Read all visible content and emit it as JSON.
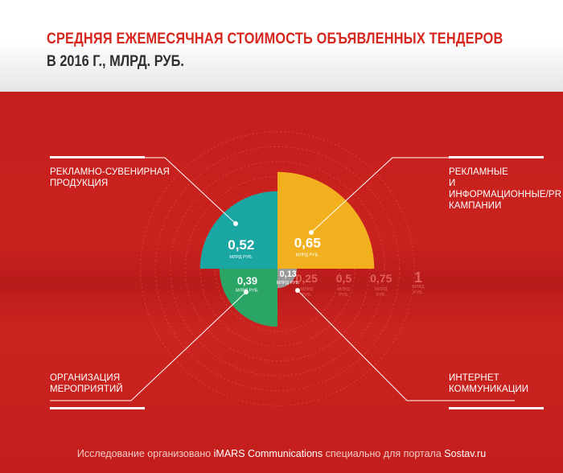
{
  "title": "СРЕДНЯЯ ЕЖЕМЕСЯЧНАЯ СТОИМОСТЬ ОБЪЯВЛЕННЫХ ТЕНДЕРОВ",
  "subtitle": "В 2016 Г., МЛРД. РУБ.",
  "footer": {
    "text_before": "Исследование организовано ",
    "org": "iMARS Communications",
    "text_middle": " специально для портала ",
    "portal": "Sostav.ru"
  },
  "colors": {
    "background": "#c8211f",
    "teal": "#1aa6a3",
    "yellow": "#f2b01e",
    "green": "#2aa566",
    "gray": "#9a9a9a",
    "title_red": "#d7261e"
  },
  "chart_data": {
    "type": "polar-area",
    "unit": "МЛРД РУБ.",
    "scale_ticks": [
      {
        "value": 0.25,
        "label": "0,25",
        "unit": "МЛРД РУБ."
      },
      {
        "value": 0.5,
        "label": "0,5",
        "unit": "МЛРД РУБ."
      },
      {
        "value": 0.75,
        "label": "0,75",
        "unit": "МЛРД РУБ."
      },
      {
        "value": 1,
        "label": "1",
        "unit": "МЛРД РУБ."
      }
    ],
    "sectors": [
      {
        "category": "РЕКЛАМНО-СУВЕНИРНАЯ ПРОДУКЦИЯ",
        "value": 0.52,
        "label": "0,52",
        "unit": "МЛРД РУБ.",
        "quadrant": "top-left",
        "color": "#1aa6a3"
      },
      {
        "category": "РЕКЛАМНЫЕ И ИНФОРМАЦИОННЫЕ/PR КАМПАНИИ",
        "value": 0.65,
        "label": "0,65",
        "unit": "МЛРД РУБ.",
        "quadrant": "top-right",
        "color": "#f2b01e"
      },
      {
        "category": "ОРГАНИЗАЦИЯ МЕРОПРИЯТИЙ",
        "value": 0.39,
        "label": "0,39",
        "unit": "МЛРД РУБ.",
        "quadrant": "bottom-left",
        "color": "#2aa566"
      },
      {
        "category": "ИНТЕРНЕТ КОММУНИКАЦИИ",
        "value": 0.13,
        "label": "0,13",
        "unit": "МЛРД РУБ.",
        "quadrant": "bottom-right",
        "color": "#9a9a9a"
      }
    ]
  },
  "labels": {
    "top_left": "РЕКЛАМНО-СУВЕНИРНАЯ\nПРОДУКЦИЯ",
    "top_right": "РЕКЛАМНЫЕ\nИ ИНФОРМАЦИОННЫЕ/PR\nКАМПАНИИ",
    "bottom_left": "ОРГАНИЗАЦИЯ\nМЕРОПРИЯТИЙ",
    "bottom_right": "ИНТЕРНЕТ\nКОММУНИКАЦИИ"
  }
}
